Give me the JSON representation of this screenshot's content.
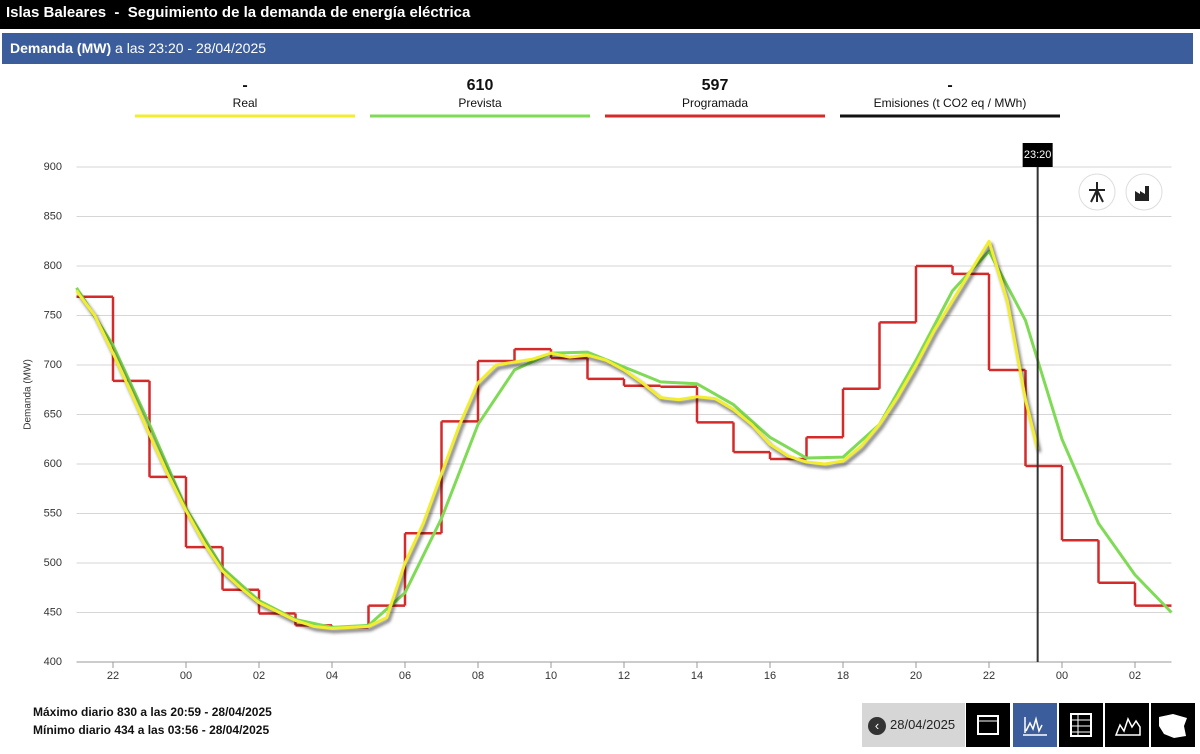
{
  "header": {
    "title": "Islas Baleares  -  Seguimiento de la demanda de energía eléctrica",
    "metric": "Demanda (MW)",
    "time": "a las 23:20 - 28/04/2025"
  },
  "chart_data": {
    "type": "line",
    "y_label": "Demanda (MW)",
    "xlim": [
      21,
      51
    ],
    "xticks": [
      {
        "value": 22,
        "label": "22"
      },
      {
        "value": 24,
        "label": "00"
      },
      {
        "value": 26,
        "label": "02"
      },
      {
        "value": 28,
        "label": "04"
      },
      {
        "value": 30,
        "label": "06"
      },
      {
        "value": 32,
        "label": "08"
      },
      {
        "value": 34,
        "label": "10"
      },
      {
        "value": 36,
        "label": "12"
      },
      {
        "value": 38,
        "label": "14"
      },
      {
        "value": 40,
        "label": "16"
      },
      {
        "value": 42,
        "label": "18"
      },
      {
        "value": 44,
        "label": "20"
      },
      {
        "value": 46,
        "label": "22"
      },
      {
        "value": 48,
        "label": "00"
      },
      {
        "value": 50,
        "label": "02"
      }
    ],
    "ylim": [
      400,
      900
    ],
    "yticks": [
      400,
      450,
      500,
      550,
      600,
      650,
      700,
      750,
      800,
      850,
      900
    ],
    "grid": true,
    "marker": {
      "x": 47.333,
      "label": "23:20"
    },
    "series": [
      {
        "name": "Real",
        "current": "-",
        "color": "#f2ee2f",
        "style": "line",
        "x": [
          21,
          21.5,
          22,
          22.5,
          23,
          23.5,
          24,
          24.5,
          25,
          25.5,
          26,
          26.5,
          27,
          27.5,
          28,
          28.5,
          29,
          29.5,
          30,
          30.5,
          31,
          31.5,
          32,
          32.5,
          33,
          33.5,
          34,
          34.5,
          35,
          35.5,
          36,
          36.5,
          37,
          37.5,
          38,
          38.5,
          39,
          39.5,
          40,
          40.5,
          41,
          41.5,
          42,
          42.5,
          43,
          43.5,
          44,
          44.5,
          45,
          45.5,
          46,
          46.5,
          47,
          47.333
        ],
        "values": [
          775,
          750,
          712,
          672,
          630,
          590,
          553,
          520,
          492,
          475,
          460,
          451,
          442,
          436,
          434,
          435,
          436,
          445,
          500,
          540,
          590,
          640,
          682,
          700,
          703,
          706,
          712,
          708,
          710,
          705,
          695,
          682,
          667,
          665,
          668,
          666,
          655,
          640,
          620,
          608,
          602,
          600,
          603,
          618,
          640,
          668,
          700,
          735,
          765,
          795,
          825,
          765,
          665,
          615
        ]
      },
      {
        "name": "Prevista",
        "current": 610,
        "color": "#7fdb55",
        "style": "line",
        "x": [
          21,
          22,
          23,
          24,
          25,
          26,
          27,
          28,
          29,
          30,
          31,
          32,
          33,
          34,
          35,
          36,
          37,
          38,
          39,
          40,
          41,
          42,
          43,
          44,
          45,
          46,
          47,
          48,
          49,
          50,
          51
        ],
        "values": [
          778,
          720,
          640,
          555,
          495,
          462,
          443,
          435,
          437,
          470,
          545,
          640,
          695,
          712,
          713,
          698,
          683,
          681,
          660,
          627,
          606,
          607,
          640,
          705,
          775,
          815,
          745,
          625,
          540,
          488,
          450
        ]
      },
      {
        "name": "Programada",
        "current": 597,
        "color": "#d42a2a",
        "style": "step",
        "x": [
          21,
          22,
          23,
          24,
          25,
          26,
          27,
          28,
          29,
          30,
          31,
          32,
          33,
          34,
          35,
          36,
          37,
          38,
          39,
          40,
          41,
          42,
          43,
          44,
          45,
          46,
          47,
          48,
          49,
          50
        ],
        "values": [
          769,
          684,
          587,
          516,
          473,
          449,
          437,
          435,
          457,
          530,
          643,
          704,
          716,
          707,
          686,
          679,
          678,
          642,
          612,
          605,
          627,
          676,
          743,
          800,
          792,
          695,
          598,
          523,
          480,
          457
        ]
      }
    ],
    "legend_extra": {
      "name": "Emisiones (t CO2 eq / MWh)",
      "current": "-",
      "color": "#111111"
    }
  },
  "footer": {
    "max": "Máximo diario 830 a las 20:59 - 28/04/2025",
    "min": "Mínimo diario 434 a las 03:56 - 28/04/2025",
    "date": "28/04/2025"
  }
}
